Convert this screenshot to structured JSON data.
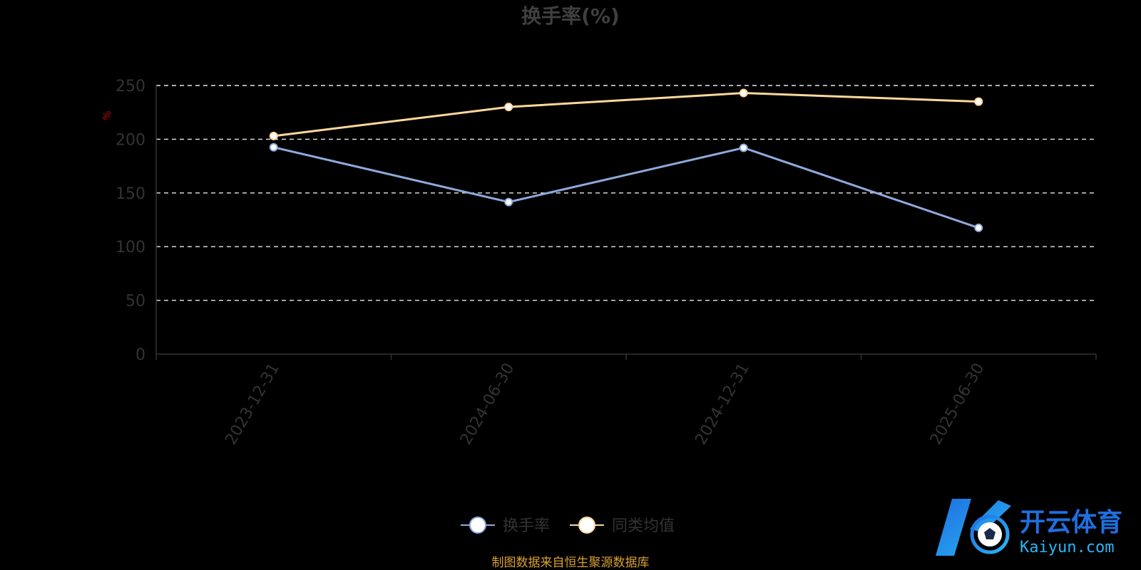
{
  "chart_data": {
    "type": "line",
    "title": "换手率(%)",
    "ylabel": "%",
    "ylim": [
      0,
      250
    ],
    "yticks": [
      "0",
      "50",
      "100",
      "150",
      "200",
      "250"
    ],
    "categories": [
      "2023-12-31",
      "2024-06-30",
      "2024-12-31",
      "2025-06-30"
    ],
    "grid": true,
    "legend_position": "bottom-center",
    "series": [
      {
        "name": "换手率",
        "color": "#8eaadc",
        "values": [
          192.5,
          141.5,
          192.0,
          117.5
        ]
      },
      {
        "name": "同类均值",
        "color": "#fcd89a",
        "values": [
          203.0,
          230.0,
          243.0,
          235.0
        ]
      }
    ]
  },
  "source_note": "制图数据来自恒生聚源数据库",
  "watermark": {
    "cn": "开云体育",
    "en": "Kaiyun.com",
    "colors": [
      "#1f6fe0",
      "#29b6f6"
    ]
  }
}
